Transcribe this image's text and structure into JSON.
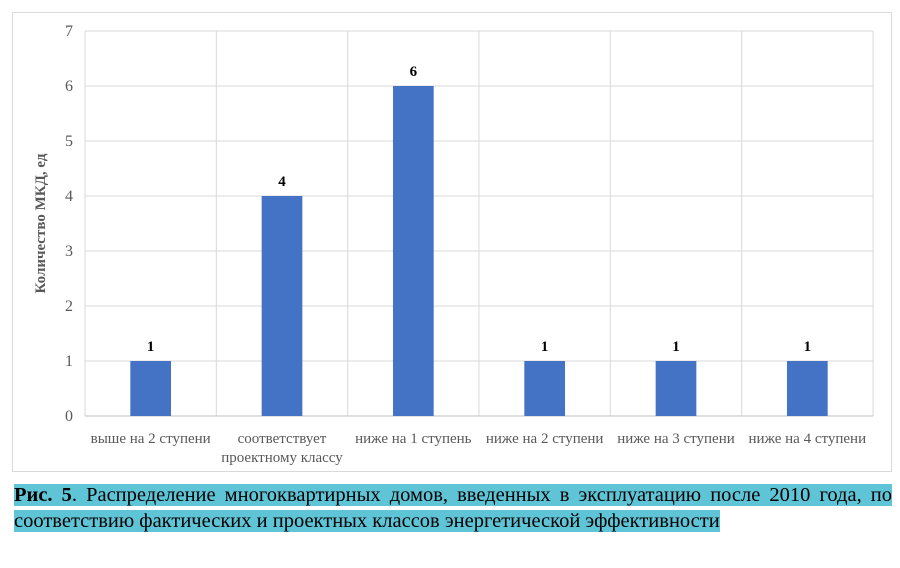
{
  "chart_data": {
    "type": "bar",
    "categories": [
      "выше на 2 ступени",
      "соответствует проектному классу",
      "ниже на 1 ступень",
      "ниже на 2 ступени",
      "ниже на 3 ступени",
      "ниже на 4 ступени"
    ],
    "category_lines": [
      [
        "выше на 2 ступени"
      ],
      [
        "соответствует",
        "проектному классу"
      ],
      [
        "ниже на 1 ступень"
      ],
      [
        "ниже на 2 ступени"
      ],
      [
        "ниже на 3 ступени"
      ],
      [
        "ниже на 4 ступени"
      ]
    ],
    "values": [
      1,
      4,
      6,
      1,
      1,
      1
    ],
    "data_labels": [
      "1",
      "4",
      "6",
      "1",
      "1",
      "1"
    ],
    "ylabel": "Количество МКД, ед",
    "xlabel": "",
    "ylim": [
      0,
      7
    ],
    "yticks": [
      "0",
      "1",
      "2",
      "3",
      "4",
      "5",
      "6",
      "7"
    ],
    "grid": true,
    "bar_color": "#4472c4",
    "grid_color": "#d9d9d9"
  },
  "caption": {
    "fig_label": "Рис. 5",
    "text": ". Распределение многоквартирных домов, введенных в эксплуатацию после 2010 года, по соответствию фактических и проектных классов энергетической эффективности",
    "highlight_color": "#5ec4d6"
  }
}
